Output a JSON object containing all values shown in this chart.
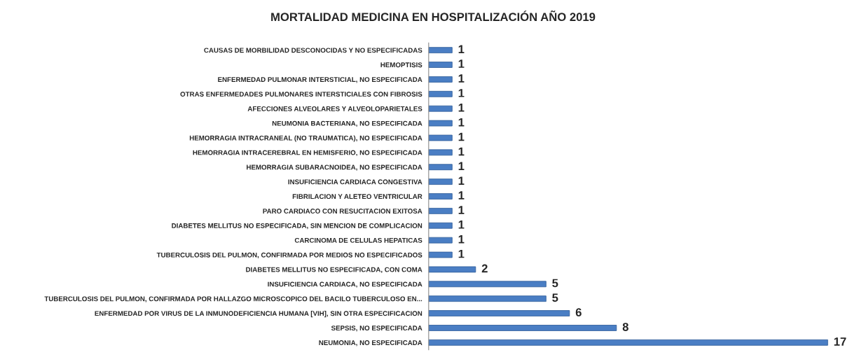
{
  "chart_data": {
    "type": "bar",
    "orientation": "horizontal",
    "title": "MORTALIDAD MEDICINA EN HOSPITALIZACIÓN AÑO 2019",
    "categories": [
      "CAUSAS DE MORBILIDAD DESCONOCIDAS Y NO ESPECIFICADAS",
      "HEMOPTISIS",
      "ENFERMEDAD PULMONAR INTERSTICIAL, NO ESPECIFICADA",
      "OTRAS ENFERMEDADES PULMONARES INTERSTICIALES CON FIBROSIS",
      "AFECCIONES ALVEOLARES Y ALVEOLOPARIETALES",
      "NEUMONIA BACTERIANA, NO ESPECIFICADA",
      "HEMORRAGIA INTRACRANEAL (NO TRAUMATICA), NO ESPECIFICADA",
      "HEMORRAGIA INTRACEREBRAL EN HEMISFERIO, NO ESPECIFICADA",
      "HEMORRAGIA SUBARACNOIDEA, NO ESPECIFICADA",
      "INSUFICIENCIA CARDIACA CONGESTIVA",
      "FIBRILACION Y ALETEO VENTRICULAR",
      "PARO CARDIACO CON RESUCITACION EXITOSA",
      "DIABETES MELLITUS NO ESPECIFICADA, SIN MENCION DE COMPLICACION",
      "CARCINOMA DE CELULAS HEPATICAS",
      "TUBERCULOSIS DEL PULMON, CONFIRMADA POR MEDIOS NO ESPECIFICADOS",
      "DIABETES MELLITUS NO ESPECIFICADA, CON COMA",
      "INSUFICIENCIA CARDIACA, NO ESPECIFICADA",
      "TUBERCULOSIS DEL PULMON, CONFIRMADA POR HALLAZGO MICROSCOPICO DEL BACILO TUBERCULOSO EN...",
      "ENFERMEDAD POR VIRUS DE LA INMUNODEFICIENCIA HUMANA [VIH], SIN OTRA ESPECIFICACION",
      "SEPSIS, NO ESPECIFICADA",
      "NEUMONIA, NO ESPECIFICADA"
    ],
    "values": [
      1,
      1,
      1,
      1,
      1,
      1,
      1,
      1,
      1,
      1,
      1,
      1,
      1,
      1,
      1,
      2,
      5,
      5,
      6,
      8,
      17
    ],
    "color": "#4a7ec4",
    "data_labels": true,
    "tick_labels": "y",
    "grid": false,
    "legend": false
  }
}
